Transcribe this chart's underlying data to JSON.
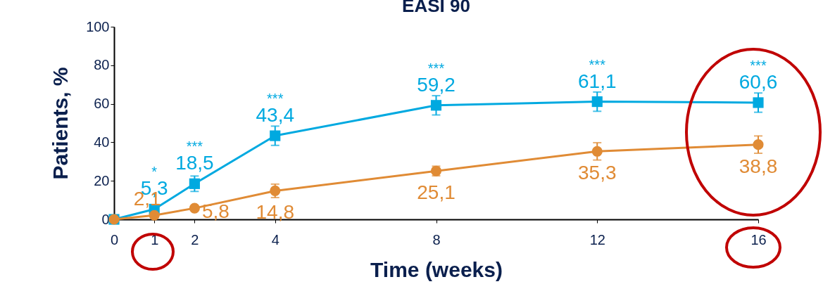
{
  "chart_data": {
    "type": "line",
    "title": "EASI 90",
    "xlabel": "Time (weeks)",
    "ylabel": "Patients, %",
    "x": [
      0,
      1,
      2,
      4,
      8,
      12,
      16
    ],
    "xlim": [
      0,
      16
    ],
    "xticks": [
      0,
      1,
      2,
      4,
      8,
      12,
      16
    ],
    "ylim": [
      0,
      100
    ],
    "yticks": [
      0,
      20,
      40,
      60,
      80,
      100
    ],
    "grid": false,
    "legend": false,
    "line_style": "solid",
    "series": [
      {
        "color": "#00a9e0",
        "marker": "square",
        "values": [
          0,
          5.3,
          18.5,
          43.4,
          59.2,
          61.1,
          60.6
        ],
        "value_labels": [
          null,
          "5,3",
          "18,5",
          "43,4",
          "59,2",
          "61,1",
          "60,6"
        ],
        "errors": [
          null,
          null,
          4,
          5,
          5,
          5,
          5
        ]
      },
      {
        "color": "#e08b35",
        "marker": "circle",
        "values": [
          0,
          2.1,
          5.8,
          14.8,
          25.1,
          35.3,
          38.8
        ],
        "value_labels": [
          null,
          "2,1",
          "5,8",
          "14,8",
          "25,1",
          "35,3",
          "38,8"
        ],
        "errors": [
          null,
          null,
          null,
          3.5,
          2.5,
          4.5,
          4.5
        ]
      }
    ],
    "annotations": [
      {
        "text": "*",
        "x": 1,
        "y": 5.3
      },
      {
        "text": "***",
        "x": 2,
        "y": 18.5
      },
      {
        "text": "***",
        "x": 4,
        "y": 43.4
      },
      {
        "text": "***",
        "x": 8,
        "y": 59.2
      },
      {
        "text": "***",
        "x": 12,
        "y": 61.1
      },
      {
        "text": "***",
        "x": 16,
        "y": 60.6
      }
    ]
  }
}
